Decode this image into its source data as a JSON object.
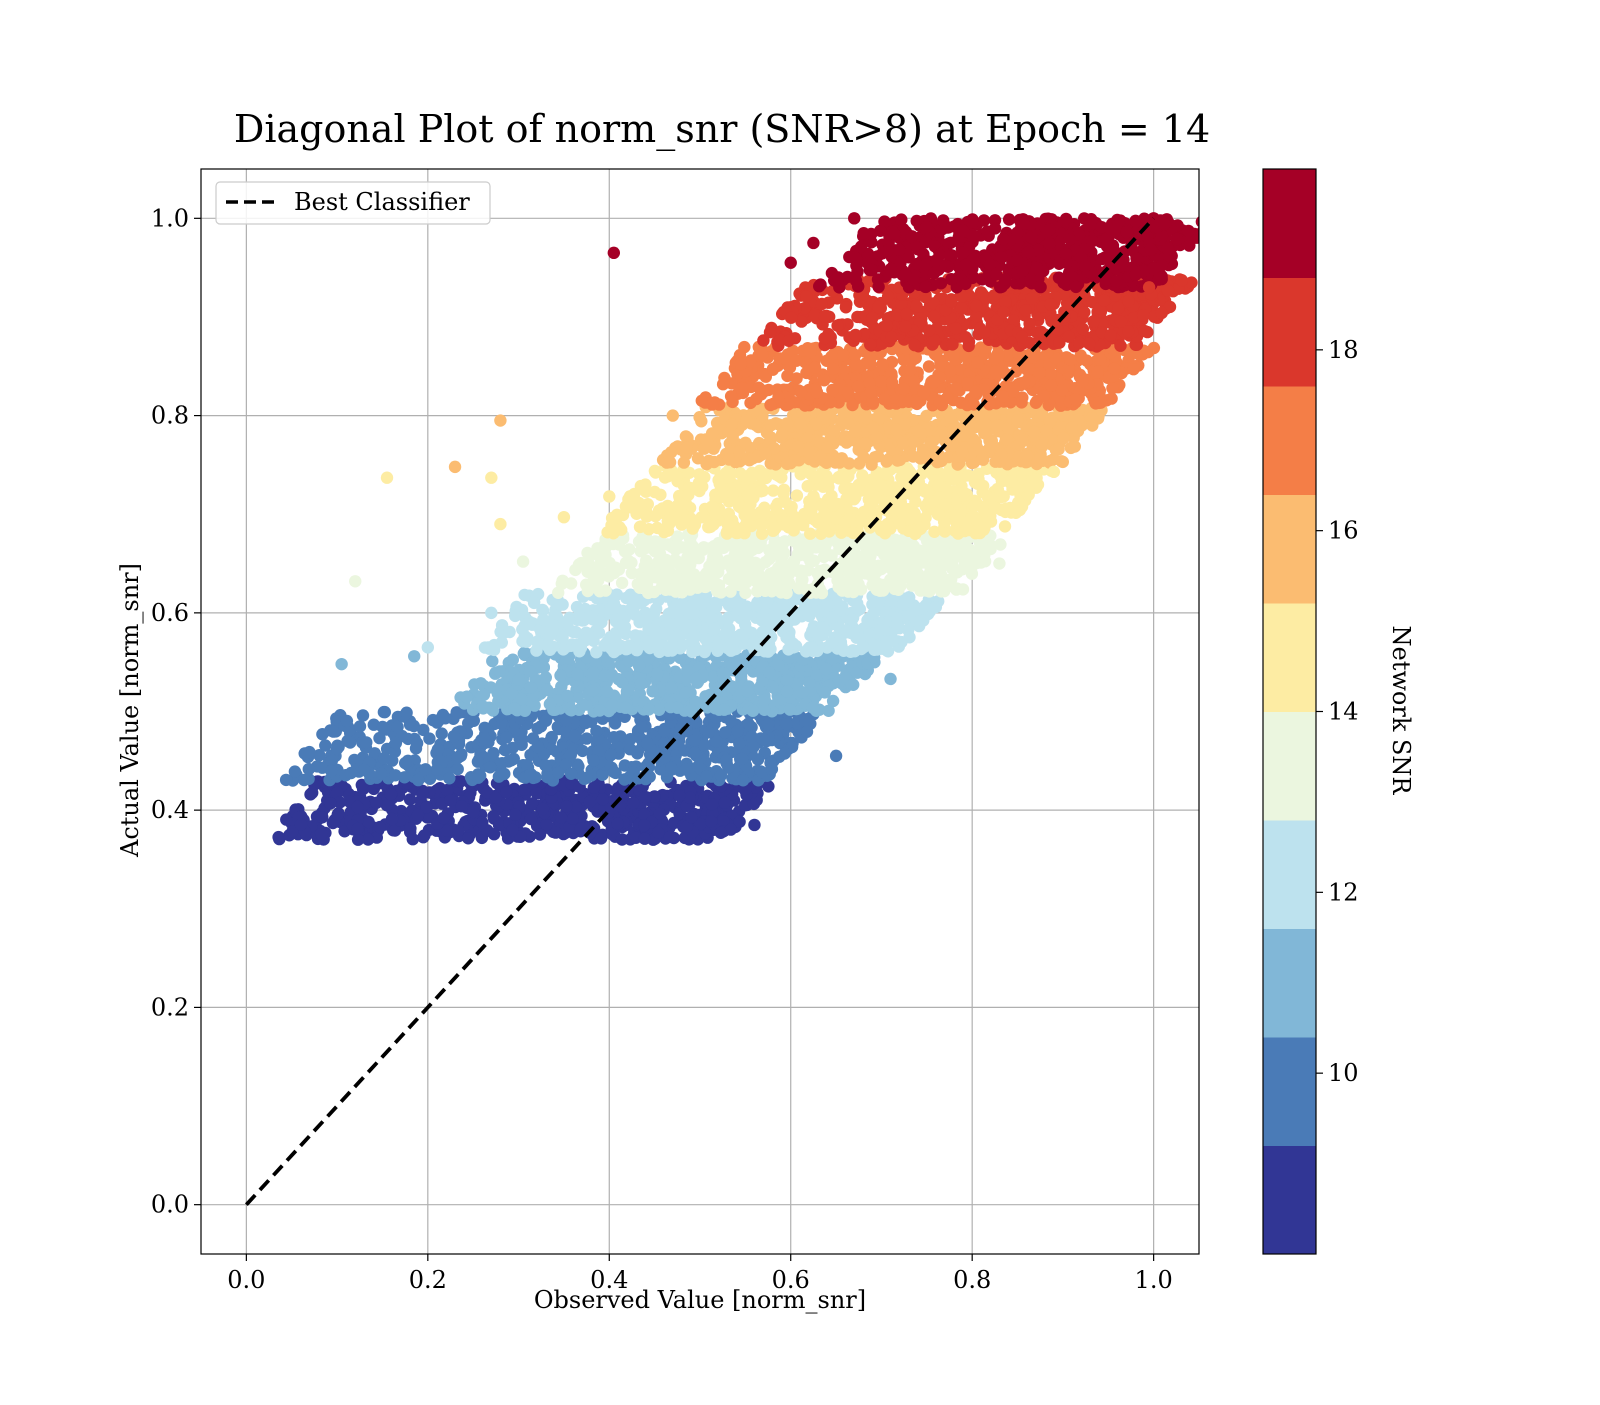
{
  "chart_data": {
    "type": "scatter",
    "title": "Diagonal Plot of norm_snr (SNR>8) at Epoch = 14",
    "xlabel": "Observed Value [norm_snr]",
    "ylabel": "Actual Value [norm_snr]",
    "xlim": [
      -0.05,
      1.05
    ],
    "ylim": [
      -0.05,
      1.05
    ],
    "x_ticks": [
      0.0,
      0.2,
      0.4,
      0.6,
      0.8,
      1.0
    ],
    "x_tick_labels": [
      "0.0",
      "0.2",
      "0.4",
      "0.6",
      "0.8",
      "1.0"
    ],
    "y_ticks": [
      0.0,
      0.2,
      0.4,
      0.6,
      0.8,
      1.0
    ],
    "y_tick_labels": [
      "0.0",
      "0.2",
      "0.4",
      "0.6",
      "0.8",
      "1.0"
    ],
    "grid": true,
    "legend": {
      "placement": "upper-left",
      "entries": [
        {
          "label": "Best Classifier",
          "style": "dashed",
          "color": "#000000"
        }
      ]
    },
    "reference_line": {
      "name": "Best Classifier",
      "x": [
        0.0,
        1.0
      ],
      "y": [
        0.0,
        1.0
      ],
      "style": "dashed"
    },
    "colorbar": {
      "label": "Network SNR",
      "range": [
        8,
        20
      ],
      "ticks": [
        10,
        12,
        14,
        16,
        18
      ],
      "tick_labels": [
        "10",
        "12",
        "14",
        "16",
        "18"
      ],
      "bins": [
        {
          "from": 8.0,
          "to": 9.2,
          "color": "#313695"
        },
        {
          "from": 9.2,
          "to": 10.4,
          "color": "#4a7bb7"
        },
        {
          "from": 10.4,
          "to": 11.6,
          "color": "#81b7d7"
        },
        {
          "from": 11.6,
          "to": 12.8,
          "color": "#bde2ee"
        },
        {
          "from": 12.8,
          "to": 14.0,
          "color": "#ebf6df"
        },
        {
          "from": 14.0,
          "to": 15.2,
          "color": "#fdeca3"
        },
        {
          "from": 15.2,
          "to": 16.4,
          "color": "#fbbc71"
        },
        {
          "from": 16.4,
          "to": 17.6,
          "color": "#f47e47"
        },
        {
          "from": 17.6,
          "to": 18.8,
          "color": "#da372c"
        },
        {
          "from": 18.8,
          "to": 20.0,
          "color": "#a50026"
        }
      ]
    },
    "bands": [
      {
        "snr_bin": 0,
        "y_range": [
          0.37,
          0.43
        ],
        "x_range": [
          0.09,
          0.52
        ]
      },
      {
        "snr_bin": 1,
        "y_range": [
          0.43,
          0.5
        ],
        "x_range": [
          0.11,
          0.57
        ]
      },
      {
        "snr_bin": 2,
        "y_range": [
          0.5,
          0.56
        ],
        "x_range": [
          0.29,
          0.64
        ]
      },
      {
        "snr_bin": 3,
        "y_range": [
          0.56,
          0.62
        ],
        "x_range": [
          0.32,
          0.71
        ]
      },
      {
        "snr_bin": 4,
        "y_range": [
          0.62,
          0.68
        ],
        "x_range": [
          0.4,
          0.78
        ]
      },
      {
        "snr_bin": 5,
        "y_range": [
          0.68,
          0.75
        ],
        "x_range": [
          0.46,
          0.83
        ]
      },
      {
        "snr_bin": 6,
        "y_range": [
          0.75,
          0.81
        ],
        "x_range": [
          0.52,
          0.89
        ]
      },
      {
        "snr_bin": 7,
        "y_range": [
          0.81,
          0.87
        ],
        "x_range": [
          0.56,
          0.94
        ]
      },
      {
        "snr_bin": 8,
        "y_range": [
          0.87,
          0.94
        ],
        "x_range": [
          0.63,
          0.98
        ]
      },
      {
        "snr_bin": 9,
        "y_range": [
          0.93,
          1.0
        ],
        "x_range": [
          0.7,
          1.0
        ]
      }
    ],
    "outliers": [
      {
        "x": 0.405,
        "y": 0.965,
        "snr_bin": 9
      },
      {
        "x": 0.28,
        "y": 0.795,
        "snr_bin": 6
      },
      {
        "x": 0.155,
        "y": 0.737,
        "snr_bin": 5
      },
      {
        "x": 0.23,
        "y": 0.748,
        "snr_bin": 6
      },
      {
        "x": 0.27,
        "y": 0.737,
        "snr_bin": 5
      },
      {
        "x": 0.28,
        "y": 0.69,
        "snr_bin": 5
      },
      {
        "x": 0.12,
        "y": 0.632,
        "snr_bin": 4
      },
      {
        "x": 0.305,
        "y": 0.652,
        "snr_bin": 4
      },
      {
        "x": 0.105,
        "y": 0.548,
        "snr_bin": 2
      },
      {
        "x": 0.185,
        "y": 0.556,
        "snr_bin": 2
      },
      {
        "x": 0.27,
        "y": 0.6,
        "snr_bin": 3
      },
      {
        "x": 0.2,
        "y": 0.565,
        "snr_bin": 3
      },
      {
        "x": 0.35,
        "y": 0.697,
        "snr_bin": 5
      },
      {
        "x": 0.4,
        "y": 0.718,
        "snr_bin": 5
      },
      {
        "x": 0.47,
        "y": 0.8,
        "snr_bin": 6
      },
      {
        "x": 0.6,
        "y": 0.955,
        "snr_bin": 9
      },
      {
        "x": 0.625,
        "y": 0.975,
        "snr_bin": 9
      },
      {
        "x": 0.67,
        "y": 1.0,
        "snr_bin": 9
      },
      {
        "x": 0.65,
        "y": 0.455,
        "snr_bin": 1
      },
      {
        "x": 0.56,
        "y": 0.385,
        "snr_bin": 0
      },
      {
        "x": 0.71,
        "y": 0.533,
        "snr_bin": 2
      },
      {
        "x": 0.76,
        "y": 0.606,
        "snr_bin": 3
      },
      {
        "x": 0.83,
        "y": 0.65,
        "snr_bin": 4
      },
      {
        "x": 0.89,
        "y": 0.743,
        "snr_bin": 5
      },
      {
        "x": 0.91,
        "y": 0.788,
        "snr_bin": 6
      },
      {
        "x": 0.995,
        "y": 0.93,
        "snr_bin": 8
      },
      {
        "x": 1.0,
        "y": 1.0,
        "snr_bin": 9
      }
    ]
  }
}
